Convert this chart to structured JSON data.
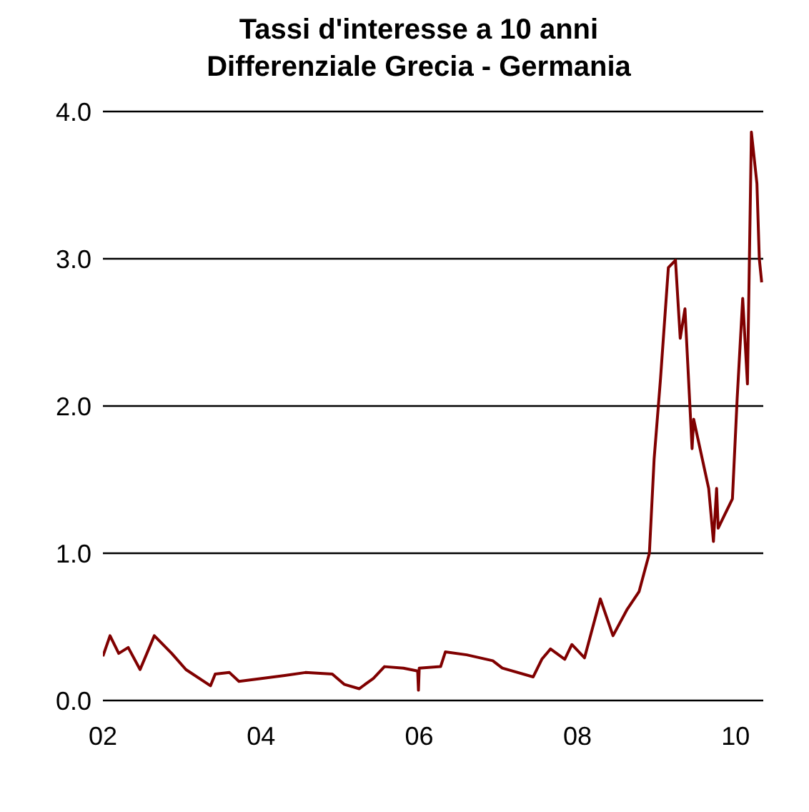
{
  "chart_data": {
    "type": "line",
    "title": "Tassi d'interesse a 10 anni",
    "subtitle": "Differenziale Grecia - Germania",
    "x": [
      2002.0,
      2002.09,
      2002.2,
      2002.32,
      2002.47,
      2002.65,
      2002.87,
      2003.05,
      2003.36,
      2003.42,
      2003.6,
      2003.72,
      2004.02,
      2004.3,
      2004.56,
      2004.9,
      2005.05,
      2005.24,
      2005.42,
      2005.56,
      2005.8,
      2005.98,
      2005.99,
      2006.0,
      2006.27,
      2006.33,
      2006.6,
      2006.93,
      2007.05,
      2007.44,
      2007.55,
      2007.66,
      2007.84,
      2007.93,
      2008.09,
      2008.29,
      2008.45,
      2008.63,
      2008.78,
      2008.91,
      2008.97,
      2009.05,
      2009.15,
      2009.24,
      2009.3,
      2009.36,
      2009.45,
      2009.47,
      2009.66,
      2009.72,
      2009.76,
      2009.78,
      2009.96,
      2010.02,
      2010.09,
      2010.15,
      2010.2,
      2010.27,
      2010.3,
      2010.33
    ],
    "series": [
      {
        "color": "#800000",
        "values": [
          0.3,
          0.44,
          0.32,
          0.36,
          0.21,
          0.44,
          0.32,
          0.21,
          0.1,
          0.18,
          0.19,
          0.13,
          0.15,
          0.17,
          0.19,
          0.18,
          0.11,
          0.08,
          0.15,
          0.23,
          0.22,
          0.2,
          0.07,
          0.22,
          0.23,
          0.33,
          0.31,
          0.27,
          0.22,
          0.16,
          0.28,
          0.35,
          0.28,
          0.38,
          0.29,
          0.69,
          0.44,
          0.62,
          0.74,
          1.0,
          1.64,
          2.18,
          2.94,
          2.99,
          2.46,
          2.66,
          1.71,
          1.91,
          1.44,
          1.08,
          1.44,
          1.17,
          1.37,
          2.05,
          2.73,
          2.15,
          3.86,
          3.51,
          3.0,
          2.84
        ]
      }
    ],
    "xlim": [
      2002,
      2010.35
    ],
    "xticks": [
      {
        "value": 2002,
        "label": "02"
      },
      {
        "value": 2004,
        "label": "04"
      },
      {
        "value": 2006,
        "label": "06"
      },
      {
        "value": 2008,
        "label": "08"
      },
      {
        "value": 2010,
        "label": "10"
      }
    ],
    "ylim": [
      0,
      4
    ],
    "yticks": [
      {
        "value": 0,
        "label": "0.0"
      },
      {
        "value": 1,
        "label": "1.0"
      },
      {
        "value": 2,
        "label": "2.0"
      },
      {
        "value": 3,
        "label": "3.0"
      },
      {
        "value": 4,
        "label": "4.0"
      }
    ],
    "grid": "y",
    "marker": "none",
    "line_style": "solid"
  }
}
